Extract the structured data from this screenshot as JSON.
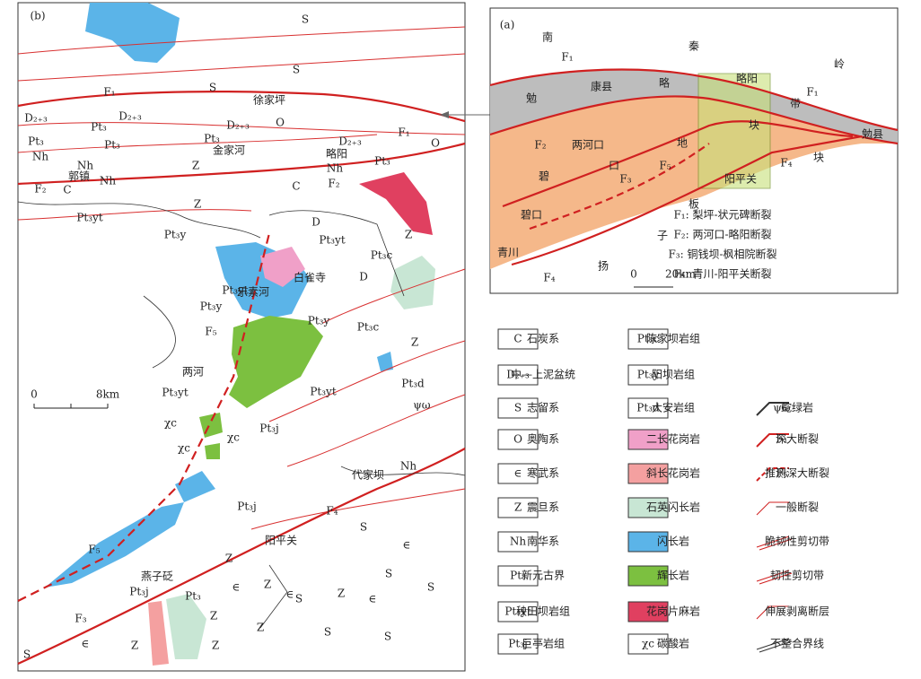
{
  "map_b": {
    "panel_label": "(b)",
    "labels": [
      "S",
      "S",
      "S",
      "徐家坪",
      "F₁",
      "D₂₊₃",
      "D₂₊₃",
      "D₂₊₃",
      "D₂₊₃",
      "O",
      "F₁",
      "O",
      "Pt₃",
      "Pt₃",
      "Pt₃",
      "Pt₃",
      "Pt₃",
      "Nh",
      "Nh",
      "Nh",
      "Nh",
      "金家河",
      "Z",
      "略阳",
      "郭镇",
      "C",
      "F₂",
      "F₂",
      "C",
      "Pt₃yt",
      "Z",
      "D",
      "Pt₃y",
      "Pt₃yt",
      "白雀寺",
      "Pt₃c",
      "Z",
      "D",
      "Pt₃yt",
      "乐素河",
      "Pt₃y",
      "Pt₃y",
      "F₅",
      "Pt₃c",
      "Z",
      "两河",
      "Pt₃yt",
      "Pt₃yt",
      "Pt₃d",
      "Pt₃j",
      "χc",
      "χc",
      "χc",
      "代家坝",
      "Nh",
      "Pt₃j",
      "F₄",
      "S",
      "阳平关",
      "F₅",
      "∈",
      "S",
      "Z",
      "S",
      "燕子砭",
      "Pt₃j",
      "Pt₃",
      "Z",
      "∈",
      "∈",
      "S",
      "Z",
      "∈",
      "Z",
      "Z",
      "S",
      "S",
      "F₃",
      "S",
      "∈",
      "Z",
      "Z",
      "ψω"
    ],
    "scale": [
      "0",
      "8km"
    ]
  },
  "map_a": {
    "panel_label": "(a)",
    "labels": [
      "南",
      "秦",
      "岭",
      "F₁",
      "康县",
      "略",
      "略阳",
      "勉",
      "带",
      "F₁",
      "两河口",
      "地",
      "块",
      "勉县",
      "F₂",
      "F₄",
      "块",
      "碧",
      "口",
      "F₅",
      "F₃",
      "阳平关",
      "板",
      "碧口",
      "子",
      "青川",
      "扬",
      "F₄"
    ],
    "faults": [
      "F₁: 梨坪-状元碑断裂",
      "F₂: 两河口-略阳断裂",
      "F₃: 铜钱坝-枫相院断裂",
      "F₄: 青川-阳平关断裂"
    ],
    "scale": [
      "0",
      "20km"
    ]
  },
  "legend": [
    {
      "swatch": "C",
      "label": "石炭系"
    },
    {
      "swatch": "D₂₊₃",
      "label": "中—上泥盆统"
    },
    {
      "swatch": "S",
      "label": "志留系"
    },
    {
      "swatch": "O",
      "label": "奥陶系"
    },
    {
      "swatch": "∈",
      "label": "寒武系"
    },
    {
      "swatch": "Z",
      "label": "震旦系"
    },
    {
      "swatch": "Nh",
      "label": "南华系"
    },
    {
      "swatch": "Pt₃",
      "label": "新元古界"
    },
    {
      "swatch": "Pt₃yt",
      "label": "秧田坝岩组"
    },
    {
      "swatch": "Pt₃j",
      "label": "巨亭岩组"
    },
    {
      "swatch": "Pt₃c",
      "label": "陈家坝岩组"
    },
    {
      "swatch": "Pt₃y",
      "label": "阳坝岩组"
    },
    {
      "swatch": "Pt₃d",
      "label": "大安岩组"
    },
    {
      "label": "二长花岗岩"
    },
    {
      "label": "斜长花岗岩"
    },
    {
      "label": "石英闪长岩"
    },
    {
      "label": "闪长岩"
    },
    {
      "label": "辉长岩"
    },
    {
      "label": "花岗片麻岩"
    },
    {
      "swatch": "χc",
      "label": "碳酸岩"
    },
    {
      "swatch": "ψω",
      "label": "蛇绿岩"
    },
    {
      "swatch": "F₁",
      "label": "深大断裂"
    },
    {
      "swatch": "F₅",
      "label": "推测深大断裂"
    },
    {
      "label": "一般断裂"
    },
    {
      "label": "脆韧性剪切带"
    },
    {
      "label": "韧性剪切带"
    },
    {
      "label": "伸展剥离断层"
    },
    {
      "label": "不整合界线"
    }
  ]
}
